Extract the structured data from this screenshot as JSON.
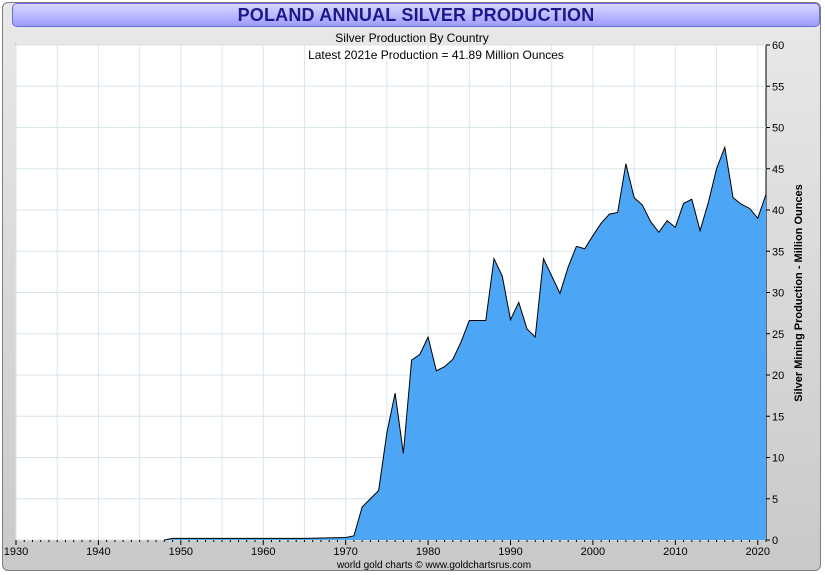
{
  "title": "POLAND ANNUAL SILVER PRODUCTION",
  "chart_data": {
    "type": "area",
    "subtitle": "Silver Production By Country",
    "annotation": "Latest 2021e Production = 41.89 Million Ounces",
    "ylabel": "Silver Mining Production - Million Ounces",
    "xlabel": "",
    "footer": "world gold charts © www.goldchartsrus.com",
    "xlim": [
      1930,
      2021
    ],
    "ylim": [
      0,
      60
    ],
    "x_ticks": [
      1930,
      1940,
      1950,
      1960,
      1970,
      1980,
      1990,
      2000,
      2010,
      2020
    ],
    "y_ticks": [
      0,
      5,
      10,
      15,
      20,
      25,
      30,
      35,
      40,
      45,
      50,
      55,
      60
    ],
    "grid": true,
    "colors": {
      "fill": "#4da6f5",
      "line": "#000000",
      "grid": "#d8e6ec"
    },
    "series": [
      {
        "x": [
          1948,
          1949,
          1950,
          1955,
          1960,
          1965,
          1970,
          1971,
          1972,
          1973,
          1974,
          1975,
          1976,
          1977,
          1978,
          1979,
          1980,
          1981,
          1982,
          1983,
          1984,
          1985,
          1986,
          1987,
          1988,
          1989,
          1990,
          1991,
          1992,
          1993,
          1994,
          1995,
          1996,
          1997,
          1998,
          1999,
          2000,
          2001,
          2002,
          2003,
          2004,
          2005,
          2006,
          2007,
          2008,
          2009,
          2010,
          2011,
          2012,
          2013,
          2014,
          2015,
          2016,
          2017,
          2018,
          2019,
          2020,
          2021
        ],
        "values": [
          0,
          0.2,
          0.2,
          0.2,
          0.2,
          0.2,
          0.3,
          0.5,
          4.0,
          5.0,
          6.0,
          13.0,
          17.8,
          10.5,
          21.8,
          22.5,
          24.6,
          20.5,
          21.0,
          21.9,
          24.0,
          26.6,
          26.6,
          26.6,
          34.1,
          32.0,
          26.7,
          28.8,
          25.6,
          24.6,
          34.1,
          32.0,
          29.9,
          33.1,
          35.6,
          35.3,
          36.9,
          38.4,
          39.5,
          39.7,
          45.6,
          41.5,
          40.6,
          38.6,
          37.3,
          38.7,
          37.9,
          40.8,
          41.3,
          37.5,
          40.9,
          45.0,
          47.6,
          41.5,
          40.7,
          40.2,
          39.0,
          41.9
        ]
      }
    ]
  }
}
